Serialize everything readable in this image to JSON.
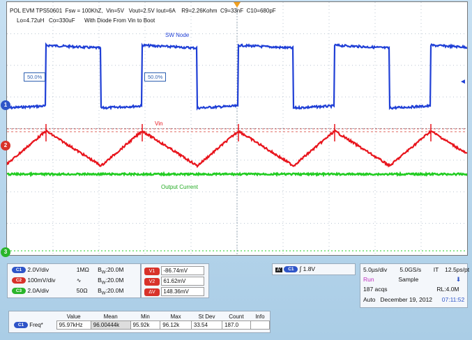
{
  "header": {
    "line1": "POL EVM TPS50601  Fsw = 100KhZ,  Vin=5V   Vout=2.5V Iout=6A    R9=2.26Kohm  C9=33nF  C10=680pF",
    "line2": "Lo=4.72uH   Co=330uF      With Diode From Vin to Boot"
  },
  "traces": {
    "sw_label": "SW Node",
    "vin_label": "Vin",
    "iout_label": "Output Current",
    "pct_left": "50.0%",
    "pct_mid": "50.0%"
  },
  "markers": {
    "ch1": "1",
    "ch2": "2",
    "ch3": "3"
  },
  "channels": [
    {
      "id": "C1",
      "scale": "2.0V/div",
      "imp": "1MΩ",
      "bw": "B",
      "bw_sub": "W",
      "bw_val": ":20.0M",
      "color": "#2f55c8"
    },
    {
      "id": "C2",
      "scale": "100mV/div",
      "imp": "",
      "bw": "B",
      "bw_sub": "W",
      "bw_val": ":20.0M",
      "color": "#d8322a"
    },
    {
      "id": "C3",
      "scale": "2.0A/div",
      "imp": "50Ω",
      "bw": "B",
      "bw_sub": "W",
      "bw_val": ":20.0M",
      "color": "#2bb52b"
    }
  ],
  "cursors": [
    {
      "name": "V1",
      "value": "-86.74mV"
    },
    {
      "name": "V2",
      "value": "61.62mV"
    },
    {
      "name": "ΔV",
      "value": "148.36mV"
    }
  ],
  "trigger": {
    "source": "A'",
    "ch": "C1",
    "level": "1.8V"
  },
  "timebase": {
    "div": "5.0µs/div",
    "rate": "5.0GS/s",
    "mode": "IT",
    "res": "12.5ps/pt",
    "state": "Run",
    "acq": "Sample",
    "acqs": "187 acqs",
    "rl": "RL:4.0M",
    "auto": "Auto",
    "date": "December 19, 2012",
    "time": "07:11:52"
  },
  "measurements": {
    "headers": [
      "Value",
      "Mean",
      "Min",
      "Max",
      "St Dev",
      "Count",
      "Info"
    ],
    "row": {
      "ch": "C1",
      "name": "Freq*",
      "values": [
        "95.97kHz",
        "96.00444k",
        "95.92k",
        "96.12k",
        "33.54",
        "187.0",
        ""
      ]
    }
  },
  "colors": {
    "sw": "#1f3fd6",
    "vin": "#e8141c",
    "iout": "#22cc22"
  }
}
